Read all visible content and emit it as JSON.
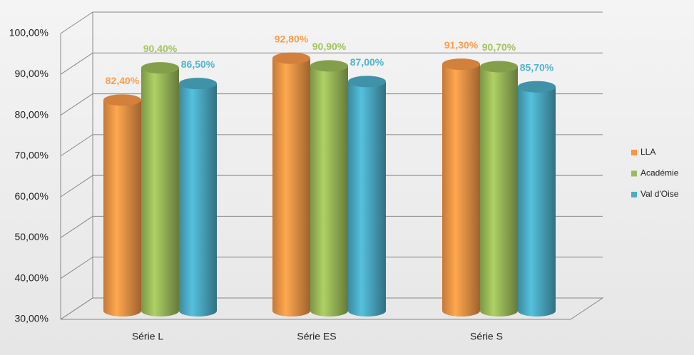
{
  "chart_data": {
    "type": "bar3d",
    "categories": [
      "Série L",
      "Série ES",
      "Série S"
    ],
    "series": [
      {
        "name": "LLA",
        "color": "#f79646",
        "values": [
          82.4,
          92.8,
          91.3
        ],
        "value_labels": [
          "82,40%",
          "92,80%",
          "91,30%"
        ]
      },
      {
        "name": "Académie",
        "color": "#9bbb59",
        "values": [
          90.4,
          90.9,
          90.7
        ],
        "value_labels": [
          "90,40%",
          "90,90%",
          "90,70%"
        ]
      },
      {
        "name": "Val d'Oise",
        "color": "#4bacc6",
        "values": [
          86.5,
          87.0,
          85.7
        ],
        "value_labels": [
          "86,50%",
          "87,00%",
          "85,70%"
        ]
      }
    ],
    "ylim": [
      30,
      100
    ],
    "yticks": [
      {
        "value": 30,
        "label": "30,00%"
      },
      {
        "value": 40,
        "label": "40,00%"
      },
      {
        "value": 50,
        "label": "50,00%"
      },
      {
        "value": 60,
        "label": "60,00%"
      },
      {
        "value": 70,
        "label": "70,00%"
      },
      {
        "value": 80,
        "label": "80,00%"
      },
      {
        "value": 90,
        "label": "90,00%"
      },
      {
        "value": 100,
        "label": "100,00%"
      }
    ],
    "grid": true,
    "legend": "right"
  }
}
